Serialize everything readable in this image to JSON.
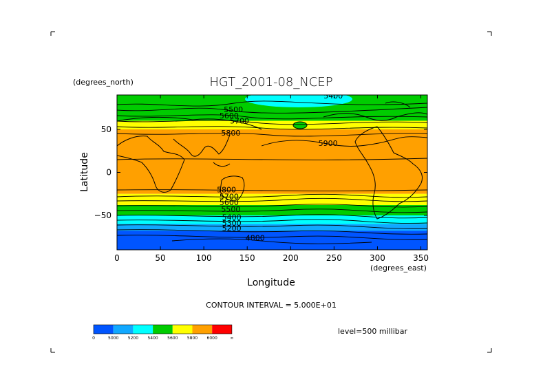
{
  "chart_data": {
    "type": "heatmap",
    "title": "HGT_2001-08_NCEP",
    "xlabel": "Longitude",
    "ylabel": "Latitude",
    "x_units": "(degrees_east)",
    "y_units": "(degrees_north)",
    "xlim": [
      0,
      357.5
    ],
    "ylim": [
      -90,
      90
    ],
    "x_ticks": [
      0,
      50,
      100,
      150,
      200,
      250,
      300,
      350
    ],
    "y_ticks": [
      50,
      0,
      -50
    ],
    "y_tick_labels": [
      "50",
      "0",
      "−50"
    ],
    "contour_interval_text": "CONTOUR INTERVAL = 5.000E+01",
    "level_text": "level=500 millibar",
    "legend_labels": [
      "0",
      "5000",
      "5200",
      "5400",
      "5600",
      "5800",
      "6000",
      "∞"
    ],
    "legend_colors": [
      "#0055ff",
      "#11a8ff",
      "#00ffff",
      "#00cc00",
      "#ffff00",
      "#ffa000",
      "#ff0000"
    ],
    "bands": [
      {
        "lat_top": 90,
        "lat_bottom": 72,
        "color": "#00cc00"
      },
      {
        "lat_top": 72,
        "lat_bottom": 60,
        "color": "#00cc00"
      },
      {
        "lat_top": 60,
        "lat_bottom": 50,
        "color": "#ffff00"
      },
      {
        "lat_top": 50,
        "lat_bottom": -25,
        "color": "#ffa000"
      },
      {
        "lat_top": -25,
        "lat_bottom": -38,
        "color": "#ffff00"
      },
      {
        "lat_top": -38,
        "lat_bottom": -50,
        "color": "#00cc00"
      },
      {
        "lat_top": -50,
        "lat_bottom": -60,
        "color": "#00ffff"
      },
      {
        "lat_top": -60,
        "lat_bottom": -68,
        "color": "#11a8ff"
      },
      {
        "lat_top": -68,
        "lat_bottom": -90,
        "color": "#0055ff"
      }
    ],
    "contour_labels": [
      {
        "text": "5400",
        "lon": 238,
        "lat": 86
      },
      {
        "text": "5500",
        "lon": 123,
        "lat": 70
      },
      {
        "text": "5600",
        "lon": 118,
        "lat": 63
      },
      {
        "text": "5700",
        "lon": 130,
        "lat": 57
      },
      {
        "text": "5800",
        "lon": 120,
        "lat": 43
      },
      {
        "text": "5900",
        "lon": 232,
        "lat": 31
      },
      {
        "text": "5800",
        "lon": 115,
        "lat": -23
      },
      {
        "text": "5700",
        "lon": 118,
        "lat": -31
      },
      {
        "text": "5600",
        "lon": 118,
        "lat": -38
      },
      {
        "text": "5500",
        "lon": 120,
        "lat": -46
      },
      {
        "text": "5400",
        "lon": 121,
        "lat": -55
      },
      {
        "text": "5300",
        "lon": 121,
        "lat": -62
      },
      {
        "text": "5200",
        "lon": 121,
        "lat": -68
      },
      {
        "text": "4800",
        "lon": 148,
        "lat": -79
      }
    ]
  }
}
